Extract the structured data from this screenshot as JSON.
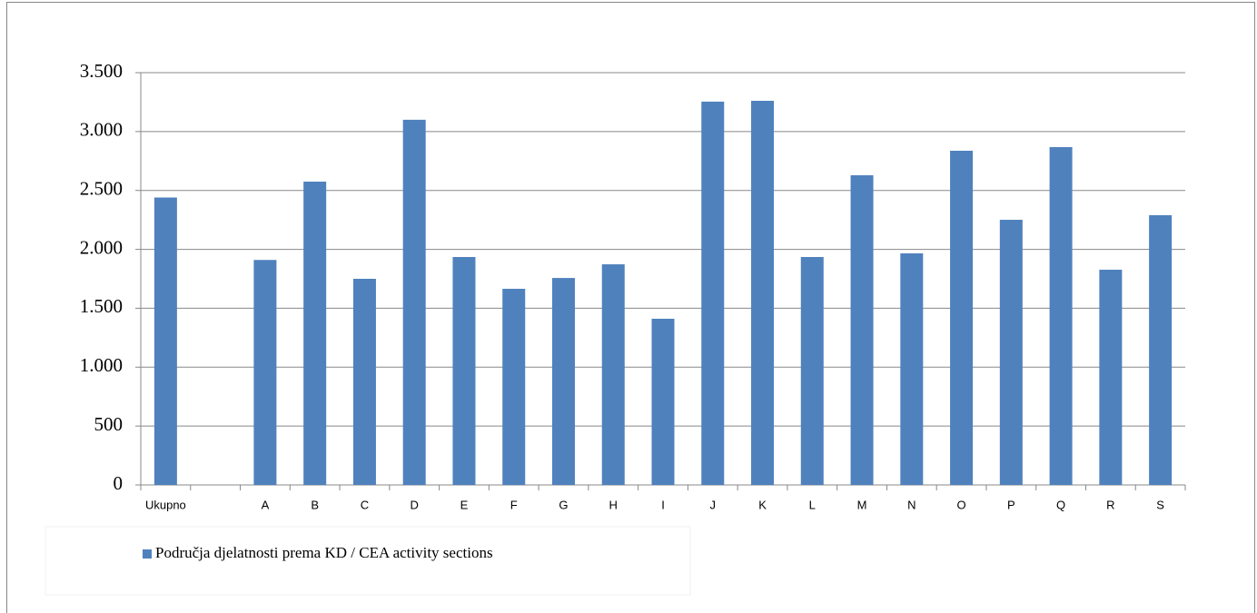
{
  "chart_data": {
    "type": "bar",
    "categories": [
      "Ukupno",
      null,
      "A",
      "B",
      "C",
      "D",
      "E",
      "F",
      "G",
      "H",
      "I",
      "J",
      "K",
      "L",
      "M",
      "N",
      "O",
      "P",
      "Q",
      "R",
      "S"
    ],
    "series": [
      {
        "name": "Područja djelatnosti prema KD / CEA activity sections",
        "color": "#4f81bd",
        "values": [
          2440,
          null,
          1910,
          2575,
          1750,
          3100,
          1935,
          1665,
          1757,
          1873,
          1411,
          3254,
          3261,
          1935,
          2629,
          1966,
          2837,
          2251,
          2868,
          1827,
          2290
        ]
      }
    ],
    "ylim": [
      0,
      3500
    ],
    "yticks": [
      0,
      500,
      {
        "value": 1000,
        "label": "1.000"
      },
      {
        "value": 1500,
        "label": "1.500"
      },
      {
        "value": 2000,
        "label": "2.000"
      },
      {
        "value": 2500,
        "label": "2.500"
      },
      {
        "value": 3000,
        "label": "3.000"
      },
      {
        "value": 3500,
        "label": "3.500"
      }
    ],
    "grid": true,
    "legend": "bottom"
  }
}
